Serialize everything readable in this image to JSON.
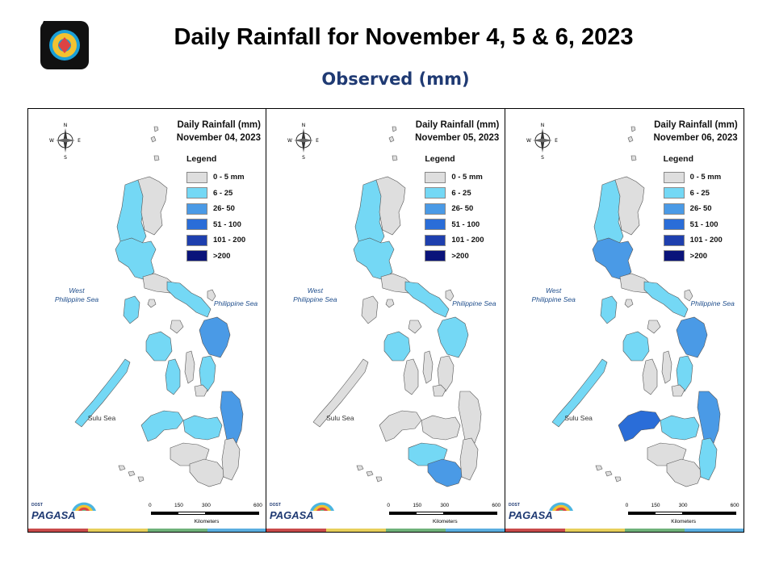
{
  "slide": {
    "title": "Daily Rainfall for November 4, 5 & 6, 2023",
    "subtitle": "Observed (mm)"
  },
  "legend": {
    "title": "Legend",
    "items": [
      {
        "label": "0 - 5 mm",
        "color": "#dedede"
      },
      {
        "label": "6 - 25",
        "color": "#74d8f5"
      },
      {
        "label": "26- 50",
        "color": "#4a9ae6"
      },
      {
        "label": "51 - 100",
        "color": "#2a6dd8"
      },
      {
        "label": "101 - 200",
        "color": "#1e3fae"
      },
      {
        "label": ">200",
        "color": "#0a137a"
      }
    ]
  },
  "map_labels": {
    "west_sea": "West\nPhilippine Sea",
    "east_sea": "Philippine Sea",
    "sulu_sea": "Sulu Sea",
    "scale_ticks": [
      "0",
      "150",
      "300",
      "600"
    ],
    "scale_unit": "Kilometers",
    "compass": {
      "n": "N",
      "s": "S",
      "e": "E",
      "w": "W"
    }
  },
  "panels": [
    {
      "title_line1": "Daily Rainfall (mm)",
      "title_line2": "November 04, 2023",
      "rain": [
        {
          "region": "northern-luzon-west",
          "class": "6 - 25"
        },
        {
          "region": "central-luzon",
          "class": "6 - 25"
        },
        {
          "region": "bicol",
          "class": "6 - 25"
        },
        {
          "region": "mindoro",
          "class": "6 - 25"
        },
        {
          "region": "palawan",
          "class": "6 - 25"
        },
        {
          "region": "panay",
          "class": "6 - 25"
        },
        {
          "region": "samar",
          "class": "26- 50"
        },
        {
          "region": "leyte",
          "class": "6 - 25"
        },
        {
          "region": "negros",
          "class": "6 - 25"
        },
        {
          "region": "zamboanga",
          "class": "6 - 25"
        },
        {
          "region": "northern-mindanao",
          "class": "6 - 25"
        },
        {
          "region": "caraga",
          "class": "26- 50"
        }
      ]
    },
    {
      "title_line1": "Daily Rainfall (mm)",
      "title_line2": "November 05, 2023",
      "rain": [
        {
          "region": "northern-luzon-west",
          "class": "6 - 25"
        },
        {
          "region": "central-luzon",
          "class": "6 - 25"
        },
        {
          "region": "bicol",
          "class": "6 - 25"
        },
        {
          "region": "panay",
          "class": "6 - 25"
        },
        {
          "region": "samar",
          "class": "6 - 25"
        },
        {
          "region": "central-mindanao",
          "class": "6 - 25"
        },
        {
          "region": "south-central-mindanao",
          "class": "26- 50"
        }
      ]
    },
    {
      "title_line1": "Daily Rainfall (mm)",
      "title_line2": "November 06, 2023",
      "rain": [
        {
          "region": "northern-luzon-west",
          "class": "6 - 25"
        },
        {
          "region": "central-luzon",
          "class": "26- 50"
        },
        {
          "region": "bicol",
          "class": "6 - 25"
        },
        {
          "region": "mindoro",
          "class": "6 - 25"
        },
        {
          "region": "palawan",
          "class": "6 - 25"
        },
        {
          "region": "panay",
          "class": "6 - 25"
        },
        {
          "region": "samar",
          "class": "26- 50"
        },
        {
          "region": "leyte",
          "class": "6 - 25"
        },
        {
          "region": "zamboanga",
          "class": "51 - 100"
        },
        {
          "region": "northern-mindanao",
          "class": "6 - 25"
        },
        {
          "region": "caraga",
          "class": "26- 50"
        },
        {
          "region": "davao-east",
          "class": "6 - 25"
        }
      ]
    }
  ],
  "branding": {
    "dost": "DOST",
    "agency": "PAGASA"
  },
  "colors": {
    "land": "#dedede",
    "border": "#555555",
    "title_text": "#000000",
    "subtitle_text": "#1f3a73",
    "footer_bar": [
      "#c94b4b",
      "#e7cf5a",
      "#6fb27a",
      "#5aaee0"
    ]
  }
}
